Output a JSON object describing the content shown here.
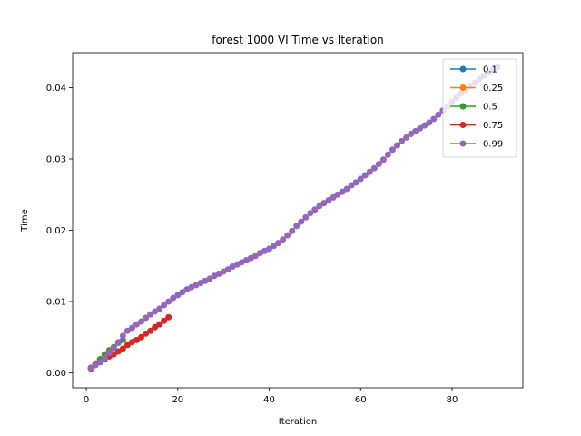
{
  "chart_data": {
    "type": "line",
    "title": "forest 1000 VI Time vs Iteration",
    "xlabel": "Iteration",
    "ylabel": "Time",
    "xlim": [
      -3,
      95.5
    ],
    "ylim": [
      -0.0021,
      0.0449
    ],
    "xticks": [
      0,
      20,
      40,
      60,
      80
    ],
    "yticks": [
      0.0,
      0.01,
      0.02,
      0.03,
      0.04
    ],
    "ytick_labels": [
      "0.00",
      "0.01",
      "0.02",
      "0.03",
      "0.04"
    ],
    "grid": false,
    "legend": "top-right",
    "series": [
      {
        "name": "0.1",
        "color": "#1f77b4",
        "x": [
          1,
          2,
          3,
          4
        ],
        "y": [
          0.0007,
          0.0012,
          0.0018,
          0.0024
        ]
      },
      {
        "name": "0.25",
        "color": "#ff7f0e",
        "x": [
          1,
          2,
          3,
          4,
          5
        ],
        "y": [
          0.0007,
          0.0013,
          0.0019,
          0.0026,
          0.0032
        ]
      },
      {
        "name": "0.5",
        "color": "#2ca02c",
        "x": [
          1,
          2,
          3,
          4,
          5,
          6,
          7,
          8
        ],
        "y": [
          0.0007,
          0.0013,
          0.0019,
          0.0025,
          0.0031,
          0.0036,
          0.0042,
          0.0046
        ]
      },
      {
        "name": "0.75",
        "color": "#d62728",
        "x": [
          1,
          2,
          3,
          4,
          5,
          6,
          7,
          8,
          9,
          10,
          11,
          12,
          13,
          14,
          15,
          16,
          17,
          18
        ],
        "y": [
          0.0006,
          0.0011,
          0.0015,
          0.0019,
          0.0023,
          0.0026,
          0.003,
          0.0034,
          0.0039,
          0.0043,
          0.0046,
          0.005,
          0.0055,
          0.0059,
          0.0064,
          0.0068,
          0.0073,
          0.0078
        ]
      },
      {
        "name": "0.99",
        "color": "#9467bd",
        "x_start": 1,
        "y": [
          0.0007,
          0.0011,
          0.0015,
          0.0021,
          0.0028,
          0.0035,
          0.0043,
          0.0052,
          0.0059,
          0.0063,
          0.0068,
          0.0072,
          0.0077,
          0.0082,
          0.0086,
          0.009,
          0.0095,
          0.01,
          0.0105,
          0.0109,
          0.0113,
          0.0117,
          0.012,
          0.0123,
          0.0126,
          0.0129,
          0.0132,
          0.0136,
          0.0139,
          0.0142,
          0.0145,
          0.0149,
          0.0152,
          0.0155,
          0.0158,
          0.0161,
          0.0164,
          0.0168,
          0.0171,
          0.0174,
          0.0178,
          0.0182,
          0.0187,
          0.0193,
          0.0199,
          0.0206,
          0.0212,
          0.0218,
          0.0224,
          0.0229,
          0.0234,
          0.0238,
          0.0242,
          0.0246,
          0.025,
          0.0254,
          0.0258,
          0.0263,
          0.0267,
          0.0272,
          0.0277,
          0.0282,
          0.0287,
          0.0293,
          0.0299,
          0.0306,
          0.0313,
          0.0319,
          0.0325,
          0.033,
          0.0335,
          0.0339,
          0.0343,
          0.0347,
          0.0351,
          0.0356,
          0.0362,
          0.0368,
          0.0374,
          0.038,
          0.0386,
          0.0392,
          0.0397,
          0.0402,
          0.0407,
          0.0412,
          0.0417,
          0.0421,
          0.0425,
          0.0429
        ]
      }
    ]
  }
}
